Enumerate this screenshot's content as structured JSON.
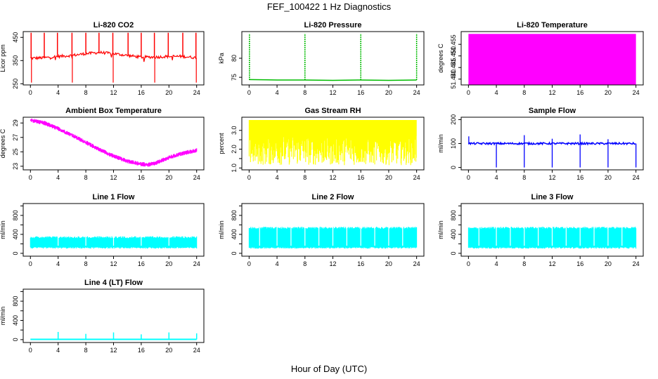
{
  "page": {
    "title": "FEF_100422  1 Hz Diagnostics",
    "x_axis_label": "Hour of Day (UTC)"
  },
  "colors": {
    "co2": "#ff0000",
    "pressure": "#00bb00",
    "temperature": "#ff00ff",
    "ambient": "#ff00ff",
    "rh": "#ffff00",
    "sample_flow": "#0000ff",
    "line_flow": "#00ffff"
  },
  "chart_data": [
    {
      "id": "co2",
      "type": "line",
      "title": "Li-820 CO2",
      "ylabel": "Licor ppm",
      "x_ticks": [
        0,
        4,
        8,
        12,
        16,
        20,
        24
      ],
      "y_ticks": [
        250,
        350,
        450
      ],
      "ylim": [
        245,
        475
      ],
      "xlim": [
        0,
        24
      ],
      "color_key": "co2",
      "series": [
        {
          "x": [
            0,
            2,
            4,
            6,
            8,
            10,
            12,
            14,
            16,
            18,
            20,
            22,
            24
          ],
          "y": [
            360,
            362,
            368,
            372,
            380,
            385,
            380,
            372,
            365,
            365,
            368,
            368,
            362
          ]
        }
      ],
      "spikes": [
        0.1,
        2,
        3.9,
        6,
        8,
        9.9,
        11.9,
        14.1,
        16,
        17.9,
        19.9,
        22,
        23.9
      ]
    },
    {
      "id": "pressure",
      "type": "line",
      "title": "Li-820 Pressure",
      "ylabel": "kPa",
      "x_ticks": [
        0,
        4,
        8,
        12,
        16,
        20,
        24
      ],
      "y_ticks": [
        75,
        80
      ],
      "ylim": [
        73,
        87
      ],
      "xlim": [
        0,
        24
      ],
      "color_key": "pressure",
      "series": [
        {
          "x": [
            0,
            4,
            8,
            12,
            16,
            20,
            24
          ],
          "y": [
            74.4,
            74.3,
            74.3,
            74.2,
            74.3,
            74.2,
            74.3
          ]
        }
      ],
      "spikes": [
        0.05,
        8,
        16,
        24
      ]
    },
    {
      "id": "temperature",
      "type": "area",
      "title": "Li-820 Temperature",
      "ylabel": "degrees C",
      "x_ticks": [
        0,
        4,
        8,
        12,
        16,
        20,
        24
      ],
      "y_ticks": [
        51.44,
        51.445,
        51.45,
        51.455
      ],
      "y_tick_labels": [
        "51.440",
        "51.445",
        "51.450",
        "51.455"
      ],
      "ylim": [
        51.4375,
        51.4605
      ],
      "xlim": [
        0,
        24
      ],
      "color_key": "temperature",
      "band": [
        51.4375,
        51.4595
      ]
    },
    {
      "id": "ambient",
      "type": "line",
      "title": "Ambient Box Temperature",
      "ylabel": "degrees C",
      "x_ticks": [
        0,
        4,
        8,
        12,
        16,
        20,
        24
      ],
      "y_ticks": [
        23,
        25,
        27,
        29
      ],
      "ylim": [
        22.5,
        29.8
      ],
      "xlim": [
        0,
        24
      ],
      "color_key": "ambient",
      "series": [
        {
          "x": [
            0,
            2,
            4,
            6,
            8,
            10,
            12,
            14,
            16,
            17,
            18,
            20,
            22,
            24
          ],
          "y": [
            29.4,
            29,
            28.2,
            27.3,
            26.3,
            25.3,
            24.4,
            23.7,
            23.3,
            23.2,
            23.4,
            24.2,
            24.8,
            25.2
          ]
        }
      ],
      "noise": 0.3
    },
    {
      "id": "rh",
      "type": "line",
      "title": "Gas Stream RH",
      "ylabel": "percent",
      "x_ticks": [
        0,
        4,
        8,
        12,
        16,
        20,
        24
      ],
      "y_ticks": [
        1.0,
        1.5,
        2.0,
        2.5,
        3.0
      ],
      "y_tick_labels": [
        "1.0",
        "",
        "2.0",
        "",
        "3.0"
      ],
      "ylim": [
        0.9,
        3.7
      ],
      "xlim": [
        0,
        24
      ],
      "color_key": "rh",
      "band": [
        1.2,
        3.6
      ]
    },
    {
      "id": "sample_flow",
      "type": "line",
      "title": "Sample Flow",
      "ylabel": "ml/min",
      "x_ticks": [
        0,
        4,
        8,
        12,
        16,
        20,
        24
      ],
      "y_ticks": [
        0,
        100,
        200
      ],
      "ylim": [
        -10,
        210
      ],
      "xlim": [
        0,
        24
      ],
      "color_key": "sample_flow",
      "series": [
        {
          "x": [
            0,
            24
          ],
          "y": [
            100,
            100
          ]
        }
      ],
      "dips": [
        4,
        8,
        12,
        16,
        20,
        24
      ],
      "peaks": [
        {
          "x": 0.05,
          "y": 130
        },
        {
          "x": 8,
          "y": 135
        },
        {
          "x": 12,
          "y": 120
        },
        {
          "x": 16,
          "y": 138
        },
        {
          "x": 20,
          "y": 118
        }
      ]
    },
    {
      "id": "line1",
      "type": "line",
      "title": "Line 1 Flow",
      "ylabel": "ml/min",
      "x_ticks": [
        0,
        4,
        8,
        12,
        16,
        20,
        24
      ],
      "y_ticks": [
        0,
        200,
        400,
        600,
        800,
        1000
      ],
      "y_tick_labels": [
        "0",
        "",
        "400",
        "",
        "800",
        ""
      ],
      "ylim": [
        -60,
        1050
      ],
      "xlim": [
        0,
        24
      ],
      "color_key": "line_flow",
      "band": [
        100,
        360
      ],
      "gaps": [
        4,
        8,
        12,
        16,
        20
      ]
    },
    {
      "id": "line2",
      "type": "line",
      "title": "Line 2 Flow",
      "ylabel": "ml/min",
      "x_ticks": [
        0,
        4,
        8,
        12,
        16,
        20,
        24
      ],
      "y_ticks": [
        0,
        200,
        400,
        600,
        800,
        1000
      ],
      "y_tick_labels": [
        "0",
        "",
        "400",
        "",
        "800",
        ""
      ],
      "ylim": [
        -60,
        1050
      ],
      "xlim": [
        0,
        24
      ],
      "color_key": "line_flow",
      "band": [
        100,
        560
      ],
      "gaps": [
        1.5,
        4,
        6,
        8,
        10,
        12,
        14,
        16,
        18,
        20,
        22
      ]
    },
    {
      "id": "line3",
      "type": "line",
      "title": "Line 3 Flow",
      "ylabel": "ml/min",
      "x_ticks": [
        0,
        4,
        8,
        12,
        16,
        20,
        24
      ],
      "y_ticks": [
        0,
        200,
        400,
        600,
        800,
        1000
      ],
      "y_tick_labels": [
        "0",
        "",
        "400",
        "",
        "800",
        ""
      ],
      "ylim": [
        -60,
        1050
      ],
      "xlim": [
        0,
        24
      ],
      "color_key": "line_flow",
      "band": [
        100,
        560
      ],
      "gaps": [
        1.5,
        4,
        6,
        8,
        10,
        12,
        14,
        16,
        18,
        20,
        22
      ]
    },
    {
      "id": "line4",
      "type": "line",
      "title": "Line 4 (LT) Flow",
      "ylabel": "ml/min",
      "x_ticks": [
        0,
        4,
        8,
        12,
        16,
        20,
        24
      ],
      "y_ticks": [
        0,
        200,
        400,
        600,
        800,
        1000
      ],
      "y_tick_labels": [
        "0",
        "",
        "400",
        "",
        "800",
        ""
      ],
      "ylim": [
        -60,
        1050
      ],
      "xlim": [
        0,
        24
      ],
      "color_key": "line_flow",
      "series": [
        {
          "x": [
            0,
            24
          ],
          "y": [
            5,
            5
          ]
        }
      ],
      "peaks": [
        {
          "x": 4,
          "y": 160
        },
        {
          "x": 8,
          "y": 120
        },
        {
          "x": 12,
          "y": 150
        },
        {
          "x": 16,
          "y": 110
        },
        {
          "x": 20,
          "y": 150
        },
        {
          "x": 24,
          "y": 130
        }
      ]
    }
  ]
}
